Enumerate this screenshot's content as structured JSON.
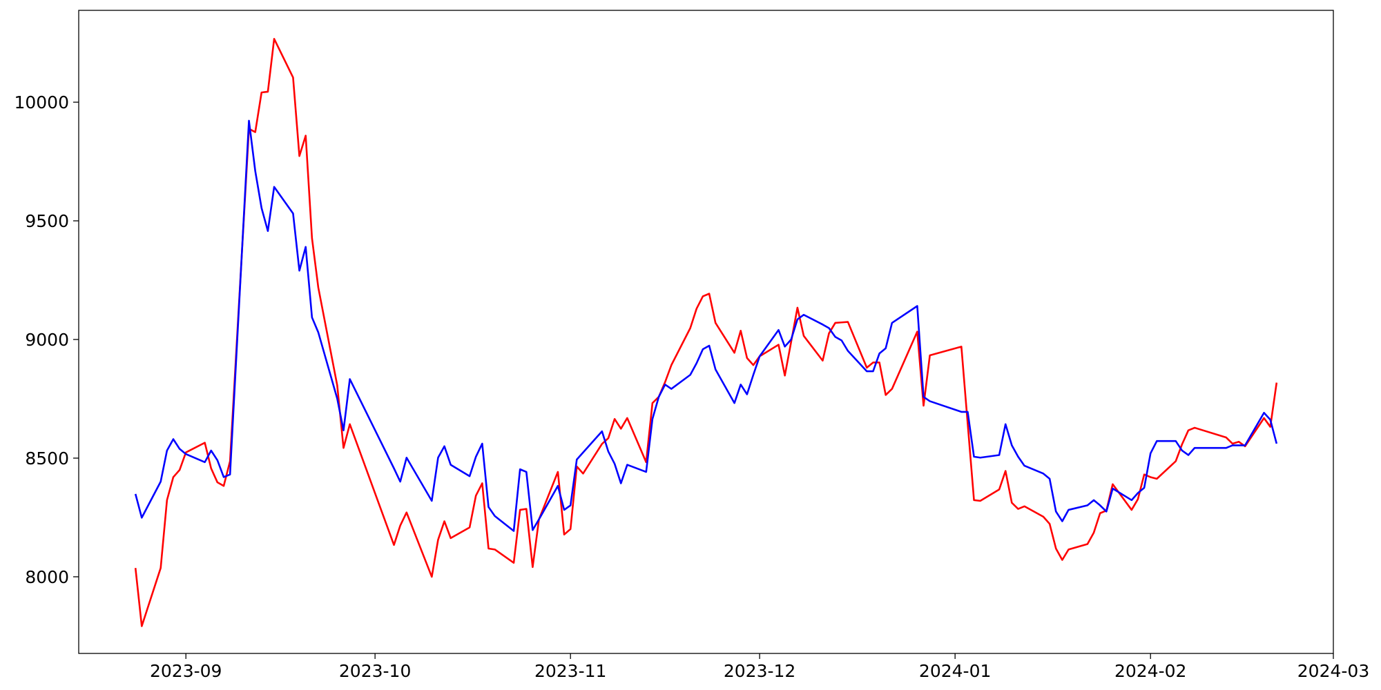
{
  "chart_data": {
    "type": "line",
    "x": [
      "2023-08-24",
      "2023-08-25",
      "2023-08-28",
      "2023-08-29",
      "2023-08-30",
      "2023-08-31",
      "2023-09-01",
      "2023-09-04",
      "2023-09-05",
      "2023-09-06",
      "2023-09-07",
      "2023-09-08",
      "2023-09-11",
      "2023-09-12",
      "2023-09-13",
      "2023-09-14",
      "2023-09-15",
      "2023-09-18",
      "2023-09-19",
      "2023-09-20",
      "2023-09-21",
      "2023-09-22",
      "2023-09-25",
      "2023-09-26",
      "2023-09-27",
      "2023-10-04",
      "2023-10-05",
      "2023-10-06",
      "2023-10-10",
      "2023-10-11",
      "2023-10-12",
      "2023-10-13",
      "2023-10-16",
      "2023-10-17",
      "2023-10-18",
      "2023-10-19",
      "2023-10-20",
      "2023-10-23",
      "2023-10-24",
      "2023-10-25",
      "2023-10-26",
      "2023-10-27",
      "2023-10-30",
      "2023-10-31",
      "2023-11-01",
      "2023-11-02",
      "2023-11-03",
      "2023-11-06",
      "2023-11-07",
      "2023-11-08",
      "2023-11-09",
      "2023-11-10",
      "2023-11-13",
      "2023-11-14",
      "2023-11-15",
      "2023-11-16",
      "2023-11-17",
      "2023-11-20",
      "2023-11-21",
      "2023-11-22",
      "2023-11-23",
      "2023-11-24",
      "2023-11-27",
      "2023-11-28",
      "2023-11-29",
      "2023-11-30",
      "2023-12-01",
      "2023-12-04",
      "2023-12-05",
      "2023-12-06",
      "2023-12-07",
      "2023-12-08",
      "2023-12-11",
      "2023-12-12",
      "2023-12-13",
      "2023-12-14",
      "2023-12-15",
      "2023-12-18",
      "2023-12-19",
      "2023-12-20",
      "2023-12-21",
      "2023-12-22",
      "2023-12-26",
      "2023-12-27",
      "2023-12-28",
      "2024-01-02",
      "2024-01-03",
      "2024-01-04",
      "2024-01-05",
      "2024-01-08",
      "2024-01-09",
      "2024-01-10",
      "2024-01-11",
      "2024-01-12",
      "2024-01-15",
      "2024-01-16",
      "2024-01-17",
      "2024-01-18",
      "2024-01-19",
      "2024-01-22",
      "2024-01-23",
      "2024-01-24",
      "2024-01-25",
      "2024-01-26",
      "2024-01-29",
      "2024-01-30",
      "2024-01-31",
      "2024-02-01",
      "2024-02-02",
      "2024-02-05",
      "2024-02-06",
      "2024-02-07",
      "2024-02-08",
      "2024-02-13",
      "2024-02-14",
      "2024-02-15",
      "2024-02-16",
      "2024-02-19",
      "2024-02-20",
      "2024-02-21"
    ],
    "series": [
      {
        "color": "#ff0000",
        "values": [
          8037,
          7792,
          8037,
          8323,
          8420,
          8450,
          8524,
          8565,
          8457,
          8398,
          8383,
          8487,
          9888,
          9874,
          10041,
          10044,
          10267,
          10104,
          9773,
          9859,
          9427,
          9219,
          8807,
          8543,
          8643,
          8134,
          8216,
          8271,
          8000,
          8156,
          8234,
          8163,
          8208,
          8342,
          8394,
          8119,
          8115,
          8059,
          8282,
          8286,
          8041,
          8242,
          8442,
          8178,
          8201,
          8465,
          8435,
          8560,
          8584,
          8665,
          8624,
          8669,
          8483,
          8732,
          8758,
          8820,
          8892,
          9048,
          9130,
          9182,
          9193,
          9070,
          8944,
          9037,
          8922,
          8892,
          8929,
          8978,
          8848,
          8990,
          9134,
          9015,
          8911,
          9026,
          9070,
          9072,
          9074,
          8881,
          8903,
          8903,
          8766,
          8792,
          9033,
          8721,
          8933,
          8970,
          8646,
          8323,
          8320,
          8368,
          8446,
          8312,
          8286,
          8297,
          8253,
          8223,
          8119,
          8071,
          8115,
          8138,
          8186,
          8268,
          8279,
          8390,
          8282,
          8327,
          8431,
          8420,
          8413,
          8487,
          8558,
          8617,
          8628,
          8587,
          8561,
          8569,
          8550,
          8669,
          8632,
          8818
        ]
      },
      {
        "color": "#0000ff",
        "values": [
          8349,
          8249,
          8401,
          8532,
          8580,
          8539,
          8517,
          8483,
          8532,
          8491,
          8420,
          8431,
          9922,
          9710,
          9554,
          9457,
          9643,
          9531,
          9290,
          9390,
          9093,
          9030,
          8751,
          8617,
          8833,
          8457,
          8401,
          8502,
          8320,
          8502,
          8550,
          8472,
          8424,
          8506,
          8561,
          8294,
          8256,
          8193,
          8453,
          8442,
          8197,
          8242,
          8383,
          8282,
          8301,
          8494,
          8524,
          8613,
          8528,
          8476,
          8394,
          8472,
          8442,
          8665,
          8758,
          8810,
          8792,
          8851,
          8900,
          8959,
          8974,
          8874,
          8732,
          8810,
          8769,
          8851,
          8929,
          9040,
          8970,
          9000,
          9085,
          9104,
          9063,
          9048,
          9011,
          8996,
          8952,
          8866,
          8866,
          8941,
          8963,
          9070,
          9141,
          8758,
          8740,
          8695,
          8695,
          8506,
          8502,
          8513,
          8643,
          8554,
          8506,
          8468,
          8435,
          8413,
          8275,
          8234,
          8282,
          8301,
          8323,
          8301,
          8275,
          8372,
          8323,
          8353,
          8375,
          8520,
          8572,
          8572,
          8532,
          8513,
          8543,
          8543,
          8554,
          8554,
          8554,
          8691,
          8662,
          8561
        ]
      }
    ],
    "xlim": [
      "2023-08-15",
      "2024-03-01"
    ],
    "xticks": [
      "2023-09",
      "2023-10",
      "2023-11",
      "2023-12",
      "2024-01",
      "2024-02",
      "2024-03"
    ],
    "ylim": [
      7677,
      10387
    ],
    "yticks": [
      8000,
      8500,
      9000,
      9500,
      10000
    ],
    "grid": false
  }
}
